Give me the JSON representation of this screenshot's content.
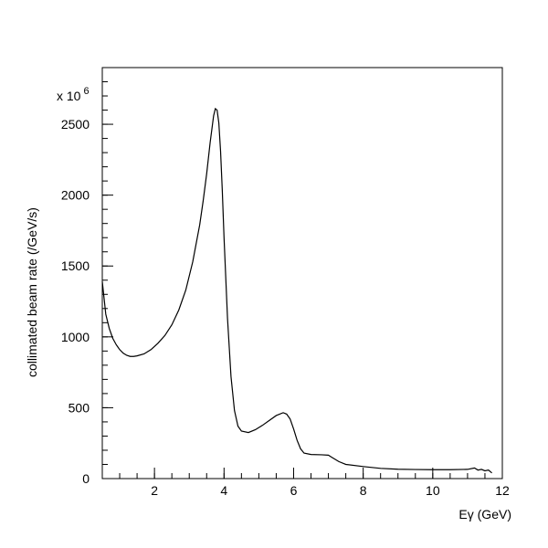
{
  "chart_data": {
    "type": "line",
    "title": "",
    "xlabel": "Eγ (GeV)",
    "ylabel": "collimated beam rate (/GeV/s)",
    "y_multiplier": {
      "base": "x 10",
      "exponent": "6"
    },
    "xlim": [
      0.5,
      12
    ],
    "ylim": [
      0,
      2900
    ],
    "x_ticks": [
      2,
      4,
      6,
      8,
      10,
      12
    ],
    "y_ticks": [
      0,
      500,
      1000,
      1500,
      2000,
      2500
    ],
    "x_minor_step": 0.5,
    "y_minor_step": 100,
    "grid": false,
    "series": [
      {
        "color": "#000000",
        "points": [
          [
            0.5,
            1390
          ],
          [
            0.6,
            1160
          ],
          [
            0.7,
            1060
          ],
          [
            0.8,
            990
          ],
          [
            0.9,
            945
          ],
          [
            1.0,
            910
          ],
          [
            1.1,
            885
          ],
          [
            1.2,
            870
          ],
          [
            1.3,
            862
          ],
          [
            1.4,
            862
          ],
          [
            1.5,
            866
          ],
          [
            1.7,
            880
          ],
          [
            1.9,
            910
          ],
          [
            2.1,
            955
          ],
          [
            2.3,
            1010
          ],
          [
            2.5,
            1085
          ],
          [
            2.7,
            1190
          ],
          [
            2.9,
            1330
          ],
          [
            3.1,
            1530
          ],
          [
            3.3,
            1790
          ],
          [
            3.4,
            1960
          ],
          [
            3.5,
            2150
          ],
          [
            3.6,
            2370
          ],
          [
            3.7,
            2560
          ],
          [
            3.75,
            2610
          ],
          [
            3.8,
            2600
          ],
          [
            3.85,
            2510
          ],
          [
            3.9,
            2310
          ],
          [
            3.95,
            2030
          ],
          [
            4.0,
            1700
          ],
          [
            4.1,
            1130
          ],
          [
            4.2,
            720
          ],
          [
            4.3,
            480
          ],
          [
            4.4,
            370
          ],
          [
            4.5,
            335
          ],
          [
            4.7,
            325
          ],
          [
            4.9,
            345
          ],
          [
            5.1,
            375
          ],
          [
            5.3,
            410
          ],
          [
            5.5,
            445
          ],
          [
            5.7,
            465
          ],
          [
            5.8,
            455
          ],
          [
            5.9,
            420
          ],
          [
            6.0,
            350
          ],
          [
            6.1,
            270
          ],
          [
            6.2,
            210
          ],
          [
            6.3,
            180
          ],
          [
            6.5,
            170
          ],
          [
            6.8,
            168
          ],
          [
            7.0,
            165
          ],
          [
            7.1,
            150
          ],
          [
            7.3,
            120
          ],
          [
            7.5,
            100
          ],
          [
            8.0,
            85
          ],
          [
            8.5,
            72
          ],
          [
            9.0,
            66
          ],
          [
            9.5,
            64
          ],
          [
            10.0,
            63
          ],
          [
            10.5,
            63
          ],
          [
            11.0,
            65
          ],
          [
            11.2,
            75
          ],
          [
            11.3,
            60
          ],
          [
            11.4,
            65
          ],
          [
            11.5,
            55
          ],
          [
            11.6,
            60
          ],
          [
            11.7,
            40
          ]
        ]
      }
    ]
  }
}
